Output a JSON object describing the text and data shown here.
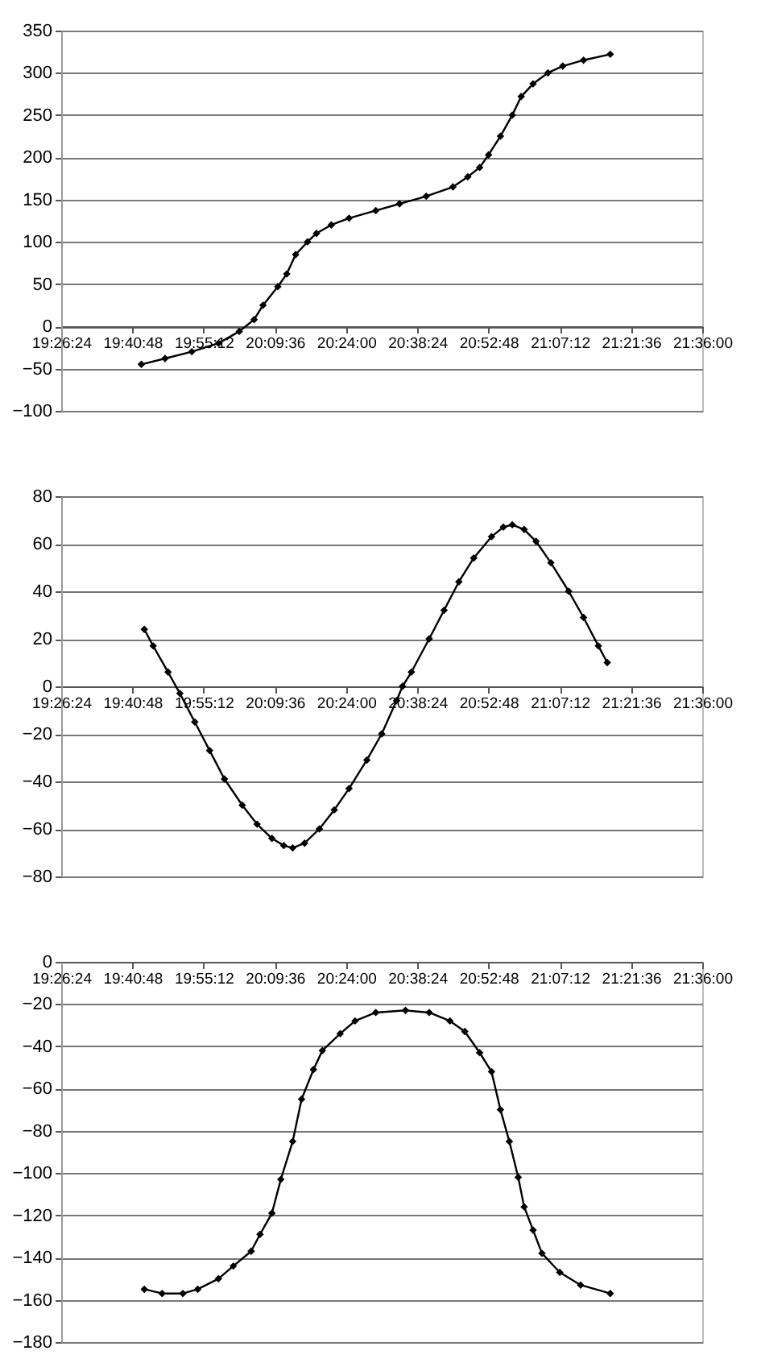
{
  "chart_data": [
    {
      "type": "line",
      "marker": "diamond",
      "line_style": "solid",
      "grid": "y",
      "xlim": [
        19.44,
        21.6
      ],
      "ylim": [
        -100,
        350
      ],
      "xticks": [
        {
          "value": 19.44,
          "label": "19:26:24"
        },
        {
          "value": 19.68,
          "label": "19:40:48"
        },
        {
          "value": 19.92,
          "label": "19:55:12"
        },
        {
          "value": 20.16,
          "label": "20:09:36"
        },
        {
          "value": 20.4,
          "label": "20:24:00"
        },
        {
          "value": 20.64,
          "label": "20:38:24"
        },
        {
          "value": 20.88,
          "label": "20:52:48"
        },
        {
          "value": 21.12,
          "label": "21:07:12"
        },
        {
          "value": 21.36,
          "label": "21:21:36"
        },
        {
          "value": 21.6,
          "label": "21:36:00"
        }
      ],
      "yticks": [
        -100,
        -50,
        0,
        50,
        100,
        150,
        200,
        250,
        300,
        350
      ],
      "x": [
        19.71,
        19.79,
        19.88,
        19.97,
        20.04,
        20.09,
        20.12,
        20.17,
        20.2,
        20.23,
        20.27,
        20.3,
        20.35,
        20.41,
        20.5,
        20.58,
        20.67,
        20.76,
        20.81,
        20.85,
        20.88,
        20.92,
        20.96,
        20.99,
        21.03,
        21.08,
        21.13,
        21.2,
        21.29
      ],
      "series": [
        {
          "color": "#000000",
          "values": [
            -45,
            -38,
            -30,
            -20,
            -6,
            8,
            25,
            47,
            62,
            85,
            100,
            110,
            120,
            128,
            137,
            145,
            154,
            165,
            177,
            188,
            203,
            225,
            250,
            272,
            287,
            300,
            308,
            315,
            322
          ]
        }
      ]
    },
    {
      "type": "line",
      "marker": "diamond",
      "line_style": "solid",
      "grid": "y",
      "xlim": [
        19.44,
        21.6
      ],
      "ylim": [
        -80,
        80
      ],
      "xticks": [
        {
          "value": 19.44,
          "label": "19:26:24"
        },
        {
          "value": 19.68,
          "label": "19:40:48"
        },
        {
          "value": 19.92,
          "label": "19:55:12"
        },
        {
          "value": 20.16,
          "label": "20:09:36"
        },
        {
          "value": 20.4,
          "label": "20:24:00"
        },
        {
          "value": 20.64,
          "label": "20:38:24"
        },
        {
          "value": 20.88,
          "label": "20:52:48"
        },
        {
          "value": 21.12,
          "label": "21:07:12"
        },
        {
          "value": 21.36,
          "label": "21:21:36"
        },
        {
          "value": 21.6,
          "label": "21:36:00"
        }
      ],
      "yticks": [
        -80,
        -60,
        -40,
        -20,
        0,
        20,
        40,
        60,
        80
      ],
      "x": [
        19.72,
        19.75,
        19.8,
        19.84,
        19.89,
        19.94,
        19.99,
        20.05,
        20.1,
        20.15,
        20.19,
        20.22,
        20.26,
        20.31,
        20.36,
        20.41,
        20.47,
        20.52,
        20.57,
        20.59,
        20.62,
        20.68,
        20.73,
        20.78,
        20.83,
        20.89,
        20.93,
        20.96,
        21.0,
        21.04,
        21.09,
        21.15,
        21.2,
        21.25,
        21.28
      ],
      "series": [
        {
          "color": "#000000",
          "values": [
            24,
            17,
            6,
            -3,
            -15,
            -27,
            -39,
            -50,
            -58,
            -64,
            -67,
            -68,
            -66,
            -60,
            -52,
            -43,
            -31,
            -20,
            -6,
            0,
            6,
            20,
            32,
            44,
            54,
            63,
            67,
            68,
            66,
            61,
            52,
            40,
            29,
            17,
            10
          ]
        }
      ]
    },
    {
      "type": "line",
      "marker": "diamond",
      "line_style": "solid",
      "grid": "y",
      "xlim": [
        19.44,
        21.6
      ],
      "ylim": [
        -180,
        0
      ],
      "xticks": [
        {
          "value": 19.44,
          "label": "19:26:24"
        },
        {
          "value": 19.68,
          "label": "19:40:48"
        },
        {
          "value": 19.92,
          "label": "19:55:12"
        },
        {
          "value": 20.16,
          "label": "20:09:36"
        },
        {
          "value": 20.4,
          "label": "20:24:00"
        },
        {
          "value": 20.64,
          "label": "20:38:24"
        },
        {
          "value": 20.88,
          "label": "20:52:48"
        },
        {
          "value": 21.12,
          "label": "21:07:12"
        },
        {
          "value": 21.36,
          "label": "21:21:36"
        },
        {
          "value": 21.6,
          "label": "21:36:00"
        }
      ],
      "yticks": [
        -180,
        -160,
        -140,
        -120,
        -100,
        -80,
        -60,
        -40,
        -20,
        0
      ],
      "x": [
        19.72,
        19.78,
        19.85,
        19.9,
        19.97,
        20.02,
        20.08,
        20.11,
        20.15,
        20.18,
        20.22,
        20.25,
        20.29,
        20.32,
        20.38,
        20.43,
        20.5,
        20.6,
        20.68,
        20.75,
        20.8,
        20.85,
        20.89,
        20.92,
        20.95,
        20.98,
        21.0,
        21.03,
        21.06,
        21.12,
        21.19,
        21.29
      ],
      "series": [
        {
          "color": "#000000",
          "values": [
            -155,
            -157,
            -157,
            -155,
            -150,
            -144,
            -137,
            -129,
            -119,
            -103,
            -85,
            -65,
            -51,
            -42,
            -34,
            -28,
            -24,
            -23,
            -24,
            -28,
            -33,
            -43,
            -52,
            -70,
            -85,
            -102,
            -116,
            -127,
            -138,
            -147,
            -153,
            -157
          ]
        }
      ]
    }
  ]
}
